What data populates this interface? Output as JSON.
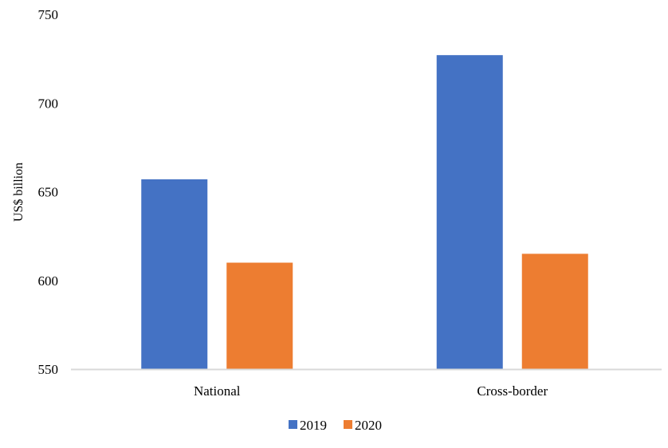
{
  "chart_data": {
    "type": "bar",
    "title": "",
    "xlabel": "",
    "ylabel": "US$ billion",
    "categories": [
      "National",
      "Cross-border"
    ],
    "series": [
      {
        "name": "2019",
        "values": [
          657,
          727
        ],
        "color": "#4472C4"
      },
      {
        "name": "2020",
        "values": [
          610,
          615
        ],
        "color": "#ED7D31"
      }
    ],
    "ylim": [
      550,
      750
    ],
    "yticks": [
      550,
      600,
      650,
      700,
      750
    ],
    "grid": false,
    "legend": "bottom-center",
    "axis_color": "#D9D9D9"
  }
}
